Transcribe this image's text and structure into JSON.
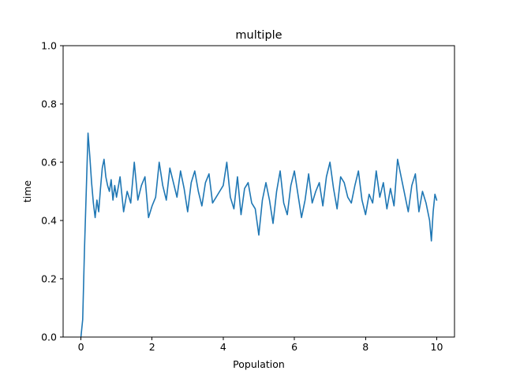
{
  "chart_data": {
    "type": "line",
    "title": "multiple",
    "xlabel": "Population",
    "ylabel": "time",
    "xlim": [
      -0.5,
      10.5
    ],
    "ylim": [
      0.0,
      1.0
    ],
    "xticks": [
      0,
      2,
      4,
      6,
      8,
      10
    ],
    "xtick_labels": [
      "0",
      "2",
      "4",
      "6",
      "8",
      "10"
    ],
    "yticks": [
      0.0,
      0.2,
      0.4,
      0.6,
      0.8,
      1.0
    ],
    "ytick_labels": [
      "0.0",
      "0.2",
      "0.4",
      "0.6",
      "0.8",
      "1.0"
    ],
    "grid": false,
    "colors": {
      "series": "#1f77b4"
    },
    "series": [
      {
        "x": [
          0.0,
          0.05,
          0.1,
          0.15,
          0.2,
          0.25,
          0.3,
          0.35,
          0.4,
          0.45,
          0.5,
          0.55,
          0.6,
          0.65,
          0.7,
          0.75,
          0.8,
          0.85,
          0.9,
          0.95,
          1.0,
          1.1,
          1.2,
          1.3,
          1.4,
          1.5,
          1.6,
          1.7,
          1.8,
          1.9,
          2.0,
          2.1,
          2.2,
          2.3,
          2.4,
          2.5,
          2.6,
          2.7,
          2.8,
          2.9,
          3.0,
          3.1,
          3.2,
          3.3,
          3.4,
          3.5,
          3.6,
          3.7,
          3.8,
          3.9,
          4.0,
          4.1,
          4.2,
          4.3,
          4.4,
          4.5,
          4.6,
          4.7,
          4.8,
          4.9,
          5.0,
          5.1,
          5.2,
          5.3,
          5.4,
          5.5,
          5.6,
          5.7,
          5.8,
          5.9,
          6.0,
          6.1,
          6.2,
          6.3,
          6.4,
          6.5,
          6.6,
          6.7,
          6.8,
          6.9,
          7.0,
          7.1,
          7.2,
          7.3,
          7.4,
          7.5,
          7.6,
          7.7,
          7.8,
          7.9,
          8.0,
          8.1,
          8.2,
          8.3,
          8.4,
          8.5,
          8.6,
          8.7,
          8.8,
          8.9,
          9.0,
          9.1,
          9.2,
          9.3,
          9.4,
          9.5,
          9.6,
          9.7,
          9.8,
          9.85,
          9.9,
          9.95,
          10.0
        ],
        "y": [
          0.0,
          0.06,
          0.3,
          0.5,
          0.7,
          0.62,
          0.53,
          0.46,
          0.41,
          0.47,
          0.43,
          0.51,
          0.58,
          0.61,
          0.55,
          0.52,
          0.5,
          0.54,
          0.47,
          0.52,
          0.48,
          0.55,
          0.43,
          0.5,
          0.46,
          0.6,
          0.47,
          0.52,
          0.55,
          0.41,
          0.45,
          0.48,
          0.6,
          0.52,
          0.47,
          0.58,
          0.53,
          0.48,
          0.57,
          0.51,
          0.43,
          0.53,
          0.57,
          0.5,
          0.45,
          0.53,
          0.56,
          0.46,
          0.48,
          0.5,
          0.52,
          0.6,
          0.48,
          0.44,
          0.55,
          0.42,
          0.51,
          0.53,
          0.46,
          0.44,
          0.35,
          0.47,
          0.53,
          0.47,
          0.39,
          0.5,
          0.57,
          0.46,
          0.42,
          0.52,
          0.57,
          0.49,
          0.41,
          0.47,
          0.56,
          0.46,
          0.5,
          0.53,
          0.45,
          0.55,
          0.6,
          0.51,
          0.44,
          0.55,
          0.53,
          0.48,
          0.46,
          0.52,
          0.57,
          0.47,
          0.42,
          0.49,
          0.46,
          0.57,
          0.48,
          0.53,
          0.44,
          0.51,
          0.45,
          0.61,
          0.55,
          0.49,
          0.43,
          0.52,
          0.56,
          0.43,
          0.5,
          0.46,
          0.4,
          0.33,
          0.43,
          0.49,
          0.47
        ]
      }
    ]
  }
}
